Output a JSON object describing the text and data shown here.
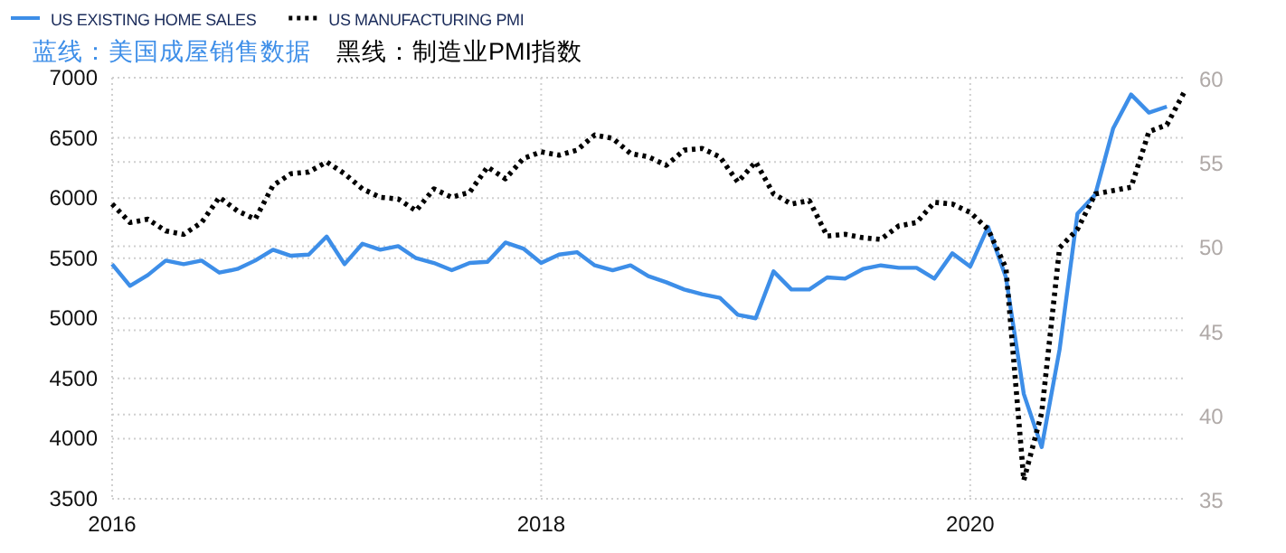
{
  "chart_data": {
    "type": "line",
    "annotations": [
      "蓝线：美国成屋销售数据",
      "黑线：制造业PMI指数"
    ],
    "x": [
      "2016-01",
      "2016-02",
      "2016-03",
      "2016-04",
      "2016-05",
      "2016-06",
      "2016-07",
      "2016-08",
      "2016-09",
      "2016-10",
      "2016-11",
      "2016-12",
      "2017-01",
      "2017-02",
      "2017-03",
      "2017-04",
      "2017-05",
      "2017-06",
      "2017-07",
      "2017-08",
      "2017-09",
      "2017-10",
      "2017-11",
      "2017-12",
      "2018-01",
      "2018-02",
      "2018-03",
      "2018-04",
      "2018-05",
      "2018-06",
      "2018-07",
      "2018-08",
      "2018-09",
      "2018-10",
      "2018-11",
      "2018-12",
      "2019-01",
      "2019-02",
      "2019-03",
      "2019-04",
      "2019-05",
      "2019-06",
      "2019-07",
      "2019-08",
      "2019-09",
      "2019-10",
      "2019-11",
      "2019-12",
      "2020-01",
      "2020-02",
      "2020-03",
      "2020-04",
      "2020-05",
      "2020-06",
      "2020-07",
      "2020-08",
      "2020-09",
      "2020-10",
      "2020-11",
      "2020-12",
      "2021-01"
    ],
    "series": [
      {
        "name": "US EXISTING HOME SALES",
        "color": "#3d8ee8",
        "line_style": "solid",
        "values": [
          5450,
          5270,
          5360,
          5480,
          5450,
          5480,
          5380,
          5410,
          5480,
          5570,
          5520,
          5530,
          5680,
          5450,
          5620,
          5570,
          5600,
          5500,
          5460,
          5400,
          5460,
          5470,
          5630,
          5580,
          5460,
          5530,
          5550,
          5440,
          5400,
          5440,
          5350,
          5300,
          5240,
          5200,
          5170,
          5030,
          5000,
          5390,
          5240,
          5240,
          5340,
          5330,
          5410,
          5440,
          5420,
          5420,
          5330,
          5540,
          5430,
          5760,
          5340,
          4370,
          3930,
          4740,
          5870,
          6030,
          6580,
          6860,
          6710,
          6760,
          null
        ]
      },
      {
        "name": "US MANUFACTURING PMI",
        "color": "#000000",
        "line_style": "dotted",
        "axis": "y2",
        "values": [
          52.5,
          51.4,
          51.6,
          50.9,
          50.7,
          51.4,
          52.9,
          52.1,
          51.6,
          53.6,
          54.3,
          54.4,
          55.0,
          54.3,
          53.4,
          52.9,
          52.8,
          52.1,
          53.4,
          52.9,
          53.2,
          54.7,
          54.0,
          55.2,
          55.6,
          55.4,
          55.7,
          56.6,
          56.4,
          55.5,
          55.3,
          54.8,
          55.7,
          55.8,
          55.3,
          53.8,
          55.0,
          53.1,
          52.5,
          52.7,
          50.6,
          50.7,
          50.5,
          50.4,
          51.2,
          51.4,
          52.6,
          52.5,
          52.0,
          51.0,
          48.7,
          36.1,
          40.1,
          49.9,
          51.0,
          53.1,
          53.3,
          53.5,
          56.8,
          57.2,
          59.2
        ]
      }
    ],
    "xlim": [
      "2016-01",
      "2021-01"
    ],
    "xticks": [
      "2016",
      "2018",
      "2020"
    ],
    "ylim": [
      3500,
      7000
    ],
    "yticks": [
      3500,
      4000,
      4500,
      5000,
      5500,
      6000,
      6500,
      7000
    ],
    "y2lim": [
      35,
      60
    ],
    "y2ticks": [
      35,
      40,
      45,
      50,
      55,
      60
    ],
    "grid": true,
    "legend": "top left"
  }
}
